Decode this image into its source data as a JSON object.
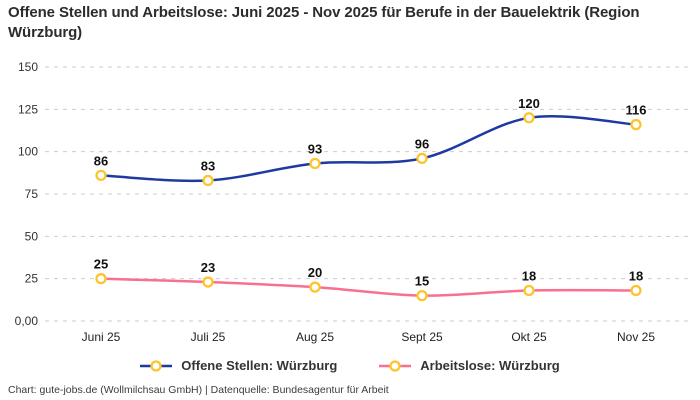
{
  "title": "Offene Stellen und Arbeitslose: Juni 2025 - Nov 2025 für Berufe in der Bauelektrik (Region Würzburg)",
  "footer": "Chart: gute-jobs.de (Wollmilchsau GmbH) | Datenquelle: Bundesagentur für Arbeit",
  "colors": {
    "background": "#ffffff",
    "title_text": "#2c2c2c",
    "grid": "#cbcbcb",
    "axis_text": "#333333",
    "data_label_text": "#111111",
    "marker_ring": "#fcc42d",
    "marker_fill": "#ffffff",
    "series_offene_stellen": "#1e3aa0",
    "series_arbeitslose": "#f8708e"
  },
  "chart_data": {
    "type": "line",
    "title": "Offene Stellen und Arbeitslose: Juni 2025 - Nov 2025 für Berufe in der Bauelektrik (Region Würzburg)",
    "categories": [
      "Juni 25",
      "Juli 25",
      "Aug 25",
      "Sept 25",
      "Okt 25",
      "Nov 25"
    ],
    "series": [
      {
        "name": "Offene Stellen: Würzburg",
        "color": "#1e3aa0",
        "values": [
          86,
          83,
          93,
          96,
          120,
          116
        ]
      },
      {
        "name": "Arbeitslose: Würzburg",
        "color": "#f8708e",
        "values": [
          25,
          23,
          20,
          15,
          18,
          18
        ]
      }
    ],
    "ylim": [
      0,
      150
    ],
    "yticks": [
      0,
      25,
      50,
      75,
      100,
      125,
      150
    ],
    "ytick_labels": [
      "0,00",
      "25",
      "50",
      "75",
      "100",
      "125",
      "150"
    ],
    "grid": true,
    "grid_style": "dashed",
    "legend_position": "bottom",
    "marker_color": "#fcc42d",
    "data_labels_shown": true
  }
}
